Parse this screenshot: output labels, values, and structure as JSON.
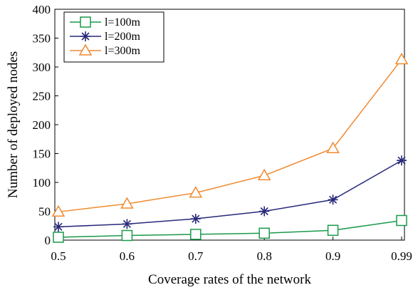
{
  "chart_data": {
    "type": "line",
    "title": "",
    "xlabel": "Coverage rates of the network",
    "ylabel": "Number of deployed nodes",
    "categories": [
      "0.5",
      "0.6",
      "0.7",
      "0.8",
      "0.9",
      "0.99"
    ],
    "ylim": [
      0,
      400
    ],
    "yticks": [
      "0",
      "50",
      "100",
      "150",
      "200",
      "250",
      "300",
      "350",
      "400"
    ],
    "grid": false,
    "legend_position": "top-left",
    "series": [
      {
        "name": "l=100m",
        "color": "#1a9a4a",
        "marker": "square",
        "values": [
          5,
          8,
          10,
          12,
          17,
          34
        ]
      },
      {
        "name": "l=200m",
        "color": "#27297a",
        "marker": "asterisk",
        "values": [
          23,
          28,
          37,
          50,
          70,
          138
        ]
      },
      {
        "name": "l=300m",
        "color": "#f08a30",
        "marker": "triangle",
        "values": [
          49,
          63,
          82,
          112,
          159,
          313
        ]
      }
    ]
  }
}
